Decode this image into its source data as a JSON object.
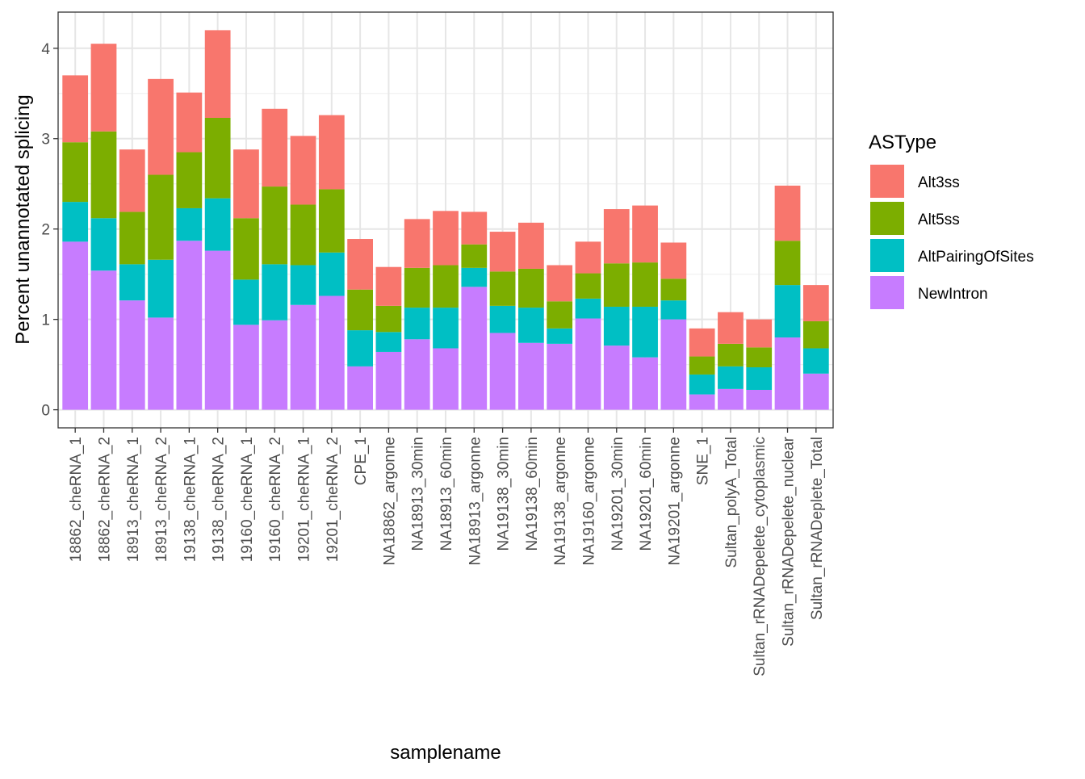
{
  "chart_data": {
    "type": "bar",
    "stacked": true,
    "title": "",
    "xlabel": "samplename",
    "ylabel": "Percent unannotated splicing",
    "ylim": [
      -0.2,
      4.4
    ],
    "yticks": [
      0,
      1,
      2,
      3,
      4
    ],
    "grid": true,
    "legend_title": "ASType",
    "legend_position": "right",
    "categories": [
      "18862_cheRNA_1",
      "18862_cheRNA_2",
      "18913_cheRNA_1",
      "18913_cheRNA_2",
      "19138_cheRNA_1",
      "19138_cheRNA_2",
      "19160_cheRNA_1",
      "19160_cheRNA_2",
      "19201_cheRNA_1",
      "19201_cheRNA_2",
      "CPE_1",
      "NA18862_argonne",
      "NA18913_30min",
      "NA18913_60min",
      "NA18913_argonne",
      "NA19138_30min",
      "NA19138_60min",
      "NA19138_argonne",
      "NA19160_argonne",
      "NA19201_30min",
      "NA19201_60min",
      "NA19201_argonne",
      "SNE_1",
      "Sultan_polyA_Total",
      "Sultan_rRNADepelete_cytoplasmic",
      "Sultan_rRNADepelete_nuclear",
      "Sultan_rRNADeplete_Total"
    ],
    "series": [
      {
        "name": "NewIntron",
        "color": "#C77CFF",
        "values": [
          1.86,
          1.54,
          1.21,
          1.02,
          1.87,
          1.76,
          0.94,
          0.99,
          1.16,
          1.26,
          0.48,
          0.64,
          0.78,
          0.68,
          1.36,
          0.85,
          0.74,
          0.73,
          1.01,
          0.71,
          0.58,
          1.0,
          0.17,
          0.23,
          0.22,
          0.8,
          0.4
        ]
      },
      {
        "name": "AltPairingOfSites",
        "color": "#00BFC4",
        "values": [
          0.44,
          0.58,
          0.4,
          0.64,
          0.36,
          0.58,
          0.5,
          0.62,
          0.44,
          0.48,
          0.4,
          0.22,
          0.35,
          0.45,
          0.21,
          0.3,
          0.39,
          0.17,
          0.22,
          0.43,
          0.56,
          0.21,
          0.22,
          0.25,
          0.25,
          0.58,
          0.28
        ]
      },
      {
        "name": "Alt5ss",
        "color": "#7CAE00",
        "values": [
          0.66,
          0.96,
          0.58,
          0.94,
          0.62,
          0.89,
          0.68,
          0.86,
          0.67,
          0.7,
          0.45,
          0.29,
          0.44,
          0.47,
          0.26,
          0.38,
          0.43,
          0.3,
          0.28,
          0.48,
          0.49,
          0.24,
          0.2,
          0.25,
          0.22,
          0.49,
          0.3
        ]
      },
      {
        "name": "Alt3ss",
        "color": "#F8766D",
        "values": [
          0.74,
          0.97,
          0.69,
          1.06,
          0.66,
          0.97,
          0.76,
          0.86,
          0.76,
          0.82,
          0.56,
          0.43,
          0.54,
          0.6,
          0.36,
          0.44,
          0.51,
          0.4,
          0.35,
          0.6,
          0.63,
          0.4,
          0.31,
          0.35,
          0.31,
          0.61,
          0.4
        ]
      }
    ],
    "legend_order": [
      "Alt3ss",
      "Alt5ss",
      "AltPairingOfSites",
      "NewIntron"
    ]
  }
}
